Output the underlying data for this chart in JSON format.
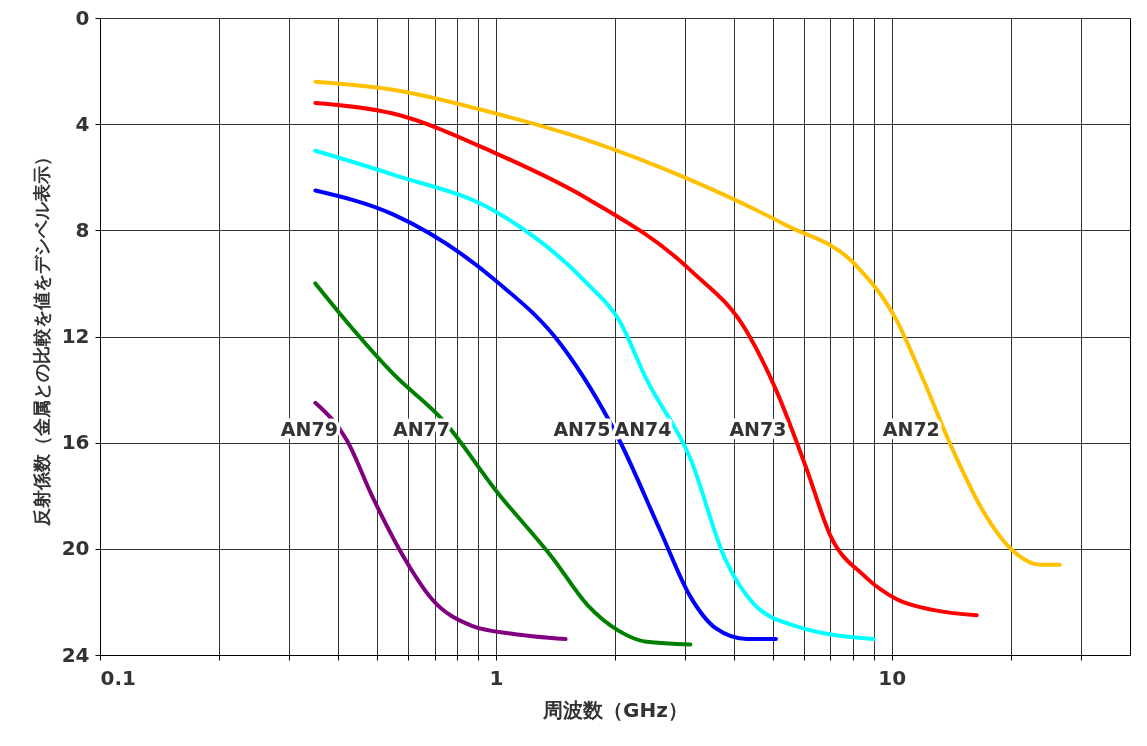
{
  "chart_data": {
    "type": "line",
    "xlabel": "周波数（GHz）",
    "ylabel": "反射係数（金属との比較を値をデシベル表示）",
    "log": "x",
    "grid": true,
    "marker": "none",
    "line_style": "solid",
    "xlim": [
      0.1,
      40
    ],
    "xticks": [
      0.1,
      {
        "value": 0.2,
        "label": null
      },
      {
        "value": 0.3,
        "label": null
      },
      {
        "value": 0.4,
        "label": null
      },
      {
        "value": 0.5,
        "label": null
      },
      {
        "value": 0.6,
        "label": null
      },
      {
        "value": 0.7,
        "label": null
      },
      {
        "value": 0.8,
        "label": null
      },
      {
        "value": 0.9,
        "label": null
      },
      1,
      {
        "value": 2,
        "label": null
      },
      {
        "value": 3,
        "label": null
      },
      {
        "value": 4,
        "label": null
      },
      {
        "value": 5,
        "label": null
      },
      {
        "value": 6,
        "label": null
      },
      {
        "value": 7,
        "label": null
      },
      {
        "value": 8,
        "label": null
      },
      {
        "value": 9,
        "label": null
      },
      10,
      {
        "value": 20,
        "label": null
      },
      {
        "value": 30,
        "label": null
      }
    ],
    "ylim": [
      24,
      0
    ],
    "yticks": [
      0,
      4,
      8,
      12,
      16,
      20,
      24
    ],
    "series": [
      {
        "name": "AN72",
        "color": "#ffc000",
        "x": [
          0.35,
          0.55,
          1,
          1.7,
          3.1,
          5.4,
          8.1,
          10.3,
          12,
          14.3,
          16.9,
          20,
          23.7,
          26.6
        ],
        "values": [
          2.4,
          2.7,
          3.6,
          4.6,
          6.1,
          7.8,
          9.3,
          11.4,
          13.6,
          16.3,
          18.5,
          20,
          20.6,
          20.6
        ]
      },
      {
        "name": "AN73",
        "color": "#ff0000",
        "x": [
          0.35,
          0.55,
          1,
          1.7,
          3.1,
          4.3,
          5.1,
          6.1,
          7,
          8.5,
          10.3,
          12.7,
          16.4
        ],
        "values": [
          3.2,
          3.6,
          5.1,
          6.8,
          9.5,
          11.8,
          14,
          17,
          19.5,
          21,
          21.9,
          22.3,
          22.5
        ]
      },
      {
        "name": "AN74",
        "color": "#00ffff",
        "x": [
          0.35,
          0.55,
          1,
          1.7,
          2.05,
          2.4,
          3.1,
          3.8,
          4.5,
          5.7,
          9
        ],
        "values": [
          5,
          5.9,
          7.3,
          10,
          11.4,
          13.6,
          16.6,
          20.4,
          22.1,
          22.9,
          23.4
        ]
      },
      {
        "name": "AN75",
        "color": "#0000ff",
        "x": [
          0.35,
          0.55,
          1,
          1.46,
          2.05,
          2.6,
          3.1,
          3.6,
          4.3,
          5.1
        ],
        "values": [
          6.5,
          7.4,
          9.9,
          12.3,
          15.9,
          19.3,
          21.8,
          23,
          23.4,
          23.4
        ]
      },
      {
        "name": "AN77",
        "color": "#008000",
        "x": [
          0.35,
          0.44,
          0.55,
          0.74,
          1,
          1.4,
          1.7,
          2.05,
          2.4,
          3.1
        ],
        "values": [
          10,
          11.8,
          13.4,
          15.2,
          17.8,
          20.4,
          22.1,
          23.1,
          23.5,
          23.6
        ]
      },
      {
        "name": "AN79",
        "color": "#800080",
        "x": [
          0.35,
          0.42,
          0.49,
          0.59,
          0.69,
          0.87,
          1.1,
          1.5
        ],
        "values": [
          14.5,
          15.9,
          18.1,
          20.4,
          21.9,
          22.9,
          23.2,
          23.4
        ]
      }
    ]
  }
}
